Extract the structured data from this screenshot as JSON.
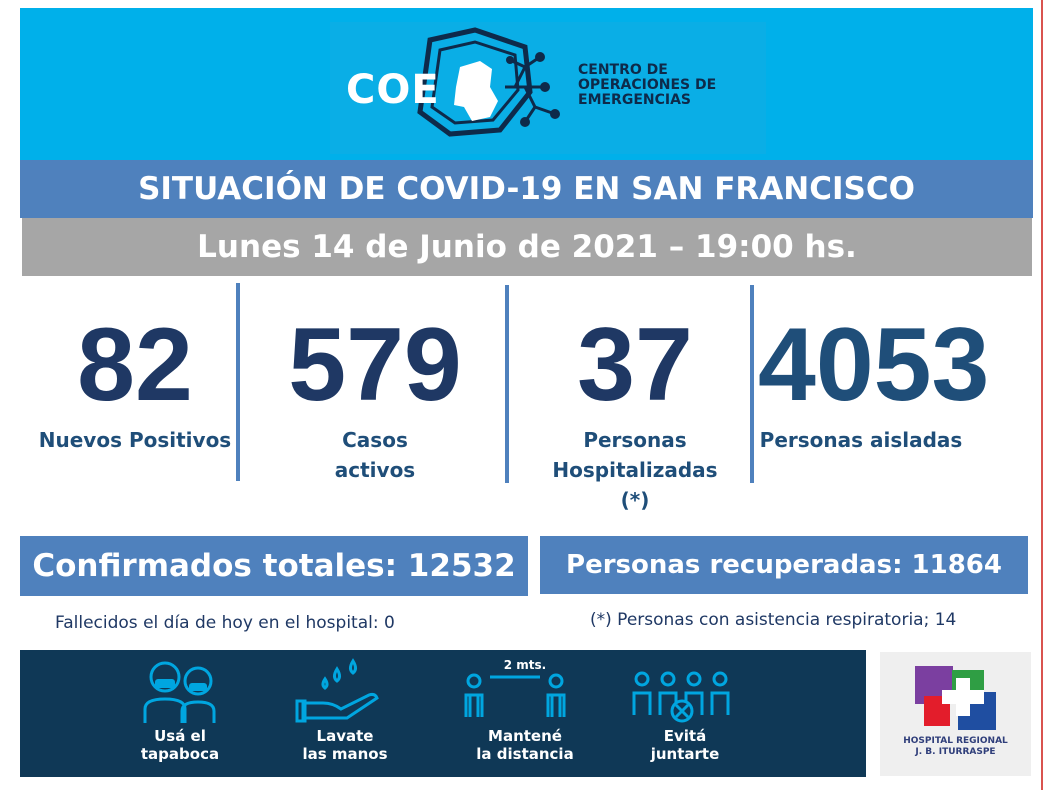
{
  "header": {
    "logo_word": "COE",
    "logo_lines": [
      "CENTRO DE",
      "OPERACIONES DE",
      "EMERGENCIAS"
    ]
  },
  "title": "SITUACIÓN DE COVID-19 EN SAN FRANCISCO",
  "date": "Lunes 14 de Junio de 2021 – 19:00 hs.",
  "stats": [
    {
      "value": "82",
      "label_lines": [
        "Nuevos Positivos"
      ]
    },
    {
      "value": "579",
      "label_lines": [
        "Casos",
        "activos"
      ]
    },
    {
      "value": "37",
      "label_lines": [
        "Personas",
        "Hospitalizadas",
        "(*)"
      ]
    },
    {
      "value": "4053",
      "label_lines": [
        "Personas aisladas"
      ]
    }
  ],
  "summary": {
    "confirmed": "Confirmados totales: 12532",
    "recovered": "Personas recuperadas: 11864",
    "deaths_note": "Fallecidos el día de hoy en el hospital: 0",
    "respiratory_note": "(*) Personas con asistencia respiratoria; 14"
  },
  "care": [
    {
      "icon": "face-mask-icon",
      "lines": [
        "Usá el",
        "tapaboca"
      ]
    },
    {
      "icon": "wash-hands-icon",
      "lines": [
        "Lavate",
        "las manos"
      ]
    },
    {
      "icon": "distance-icon",
      "lines": [
        "Mantené",
        "la distancia"
      ],
      "distance_label": "2 mts."
    },
    {
      "icon": "no-gathering-icon",
      "lines": [
        "Evitá",
        "juntarte"
      ]
    }
  ],
  "hospital": {
    "lines": [
      "HOSPITAL REGIONAL",
      "J. B. ITURRASPE"
    ],
    "logo_colors": {
      "purple": "#7b3fa0",
      "red": "#e31d2b",
      "blue": "#1f4ea1",
      "green": "#2f9e44"
    }
  }
}
